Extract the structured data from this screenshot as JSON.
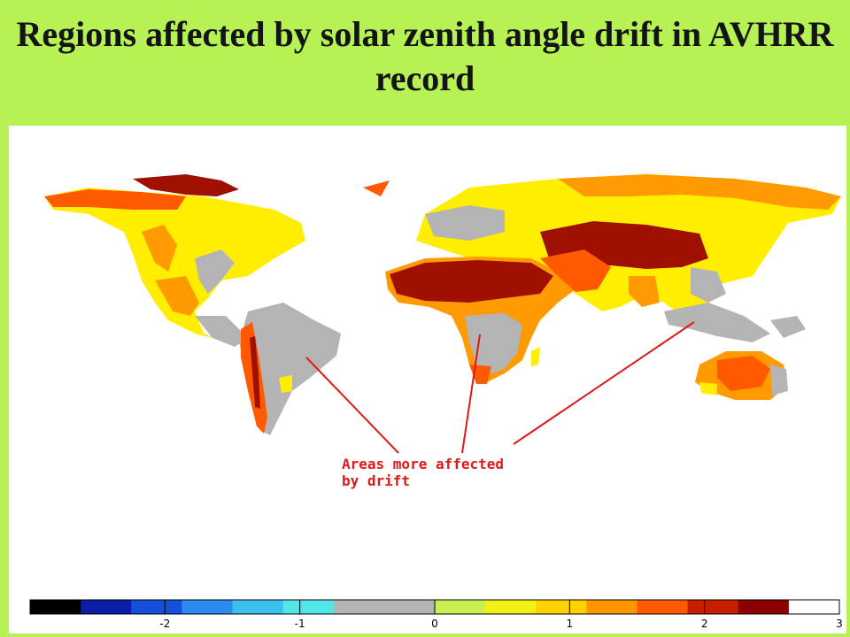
{
  "title": "Regions affected by solar zenith angle drift in AVHRR record",
  "annotation": "Areas more affected\nby drift",
  "legend": {
    "min": -3,
    "max": 3,
    "tick_labels": [
      "-2",
      "-1",
      "0",
      "1",
      "2",
      "3"
    ],
    "colors": [
      "#000000",
      "#0a1ea6",
      "#1450dc",
      "#2a8cf0",
      "#3cc0f0",
      "#50e6e6",
      "#b4b4b4",
      "#b4b4b4",
      "#c8f050",
      "#f0f014",
      "#ffd200",
      "#ff9600",
      "#ff5a00",
      "#c81e00",
      "#8c0000",
      "#ffffff"
    ]
  },
  "map_colors": {
    "land_unaffected": "#b4b4b4",
    "low": "#ffee00",
    "medium": "#ff9a00",
    "high": "#ff5a00",
    "very_high": "#a01000",
    "arrow": "#e01818"
  }
}
